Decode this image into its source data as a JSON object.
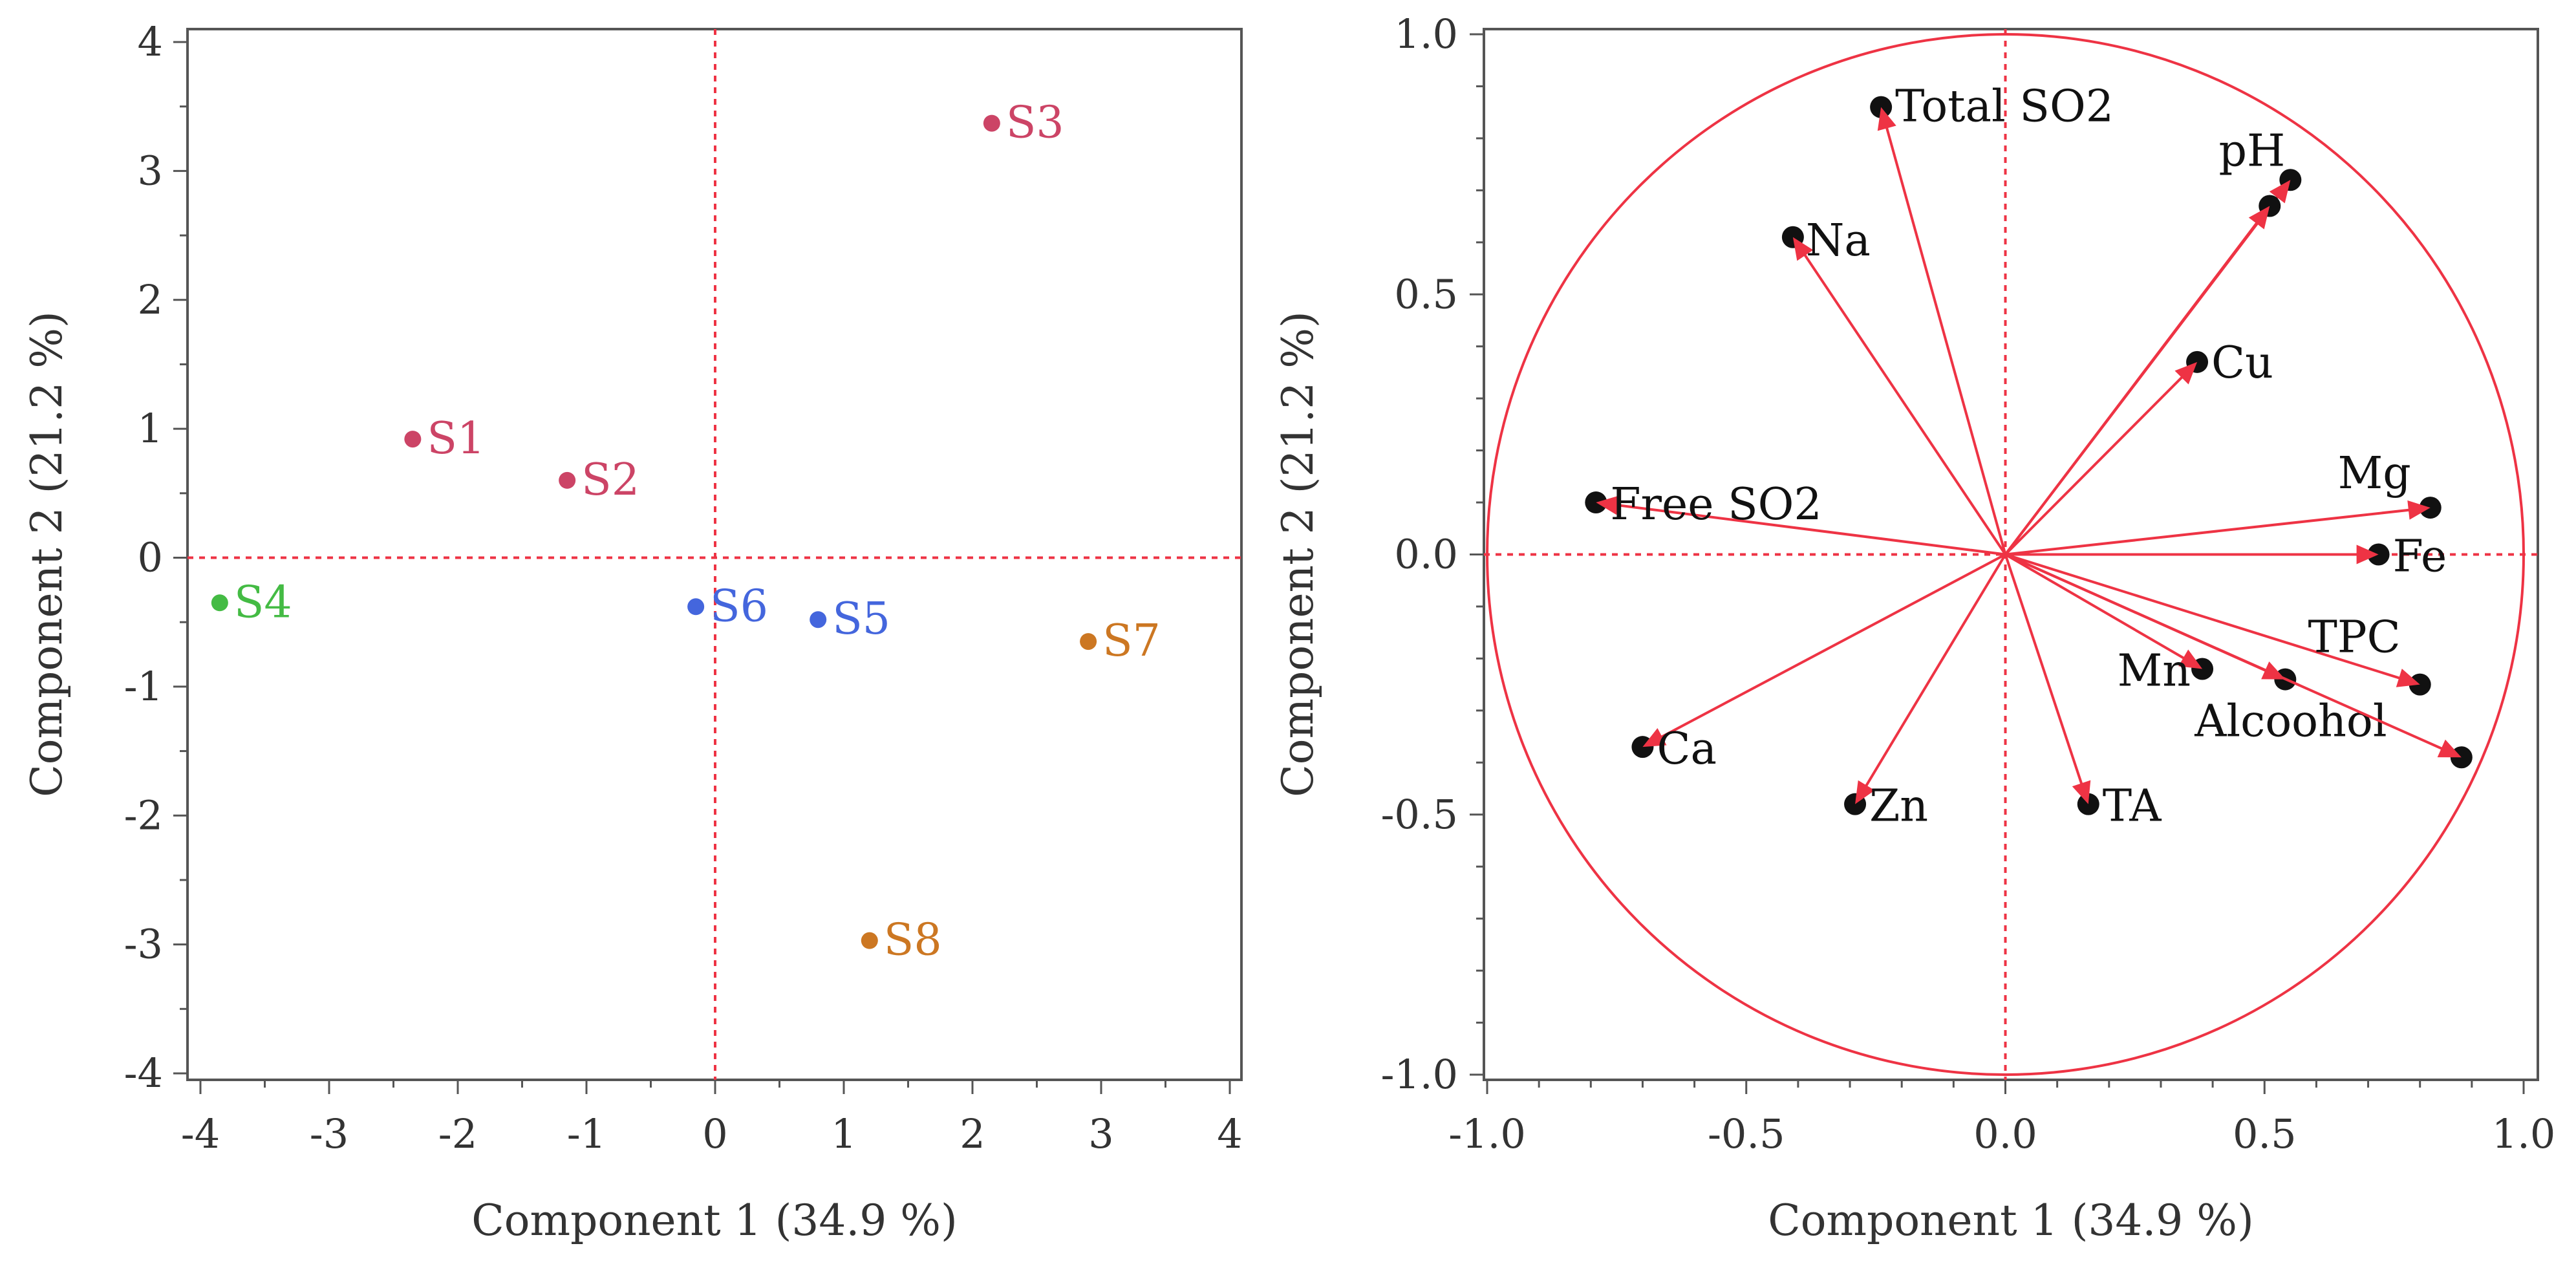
{
  "chart_data": [
    {
      "type": "scatter",
      "title": "",
      "xlabel": "Component 1  (34.9 %)",
      "ylabel": "Component 2  (21.2 %)",
      "xlim": [
        -4,
        4
      ],
      "ylim": [
        -4,
        4
      ],
      "xticks": [
        "-4",
        "-3",
        "-2",
        "-1",
        "0",
        "1",
        "2",
        "3",
        "4"
      ],
      "yticks": [
        "-4",
        "-3",
        "-2",
        "-1",
        "0",
        "1",
        "2",
        "3",
        "4"
      ],
      "points": [
        {
          "label": "S1",
          "x": -2.35,
          "y": 0.92,
          "color": "#cc4466"
        },
        {
          "label": "S2",
          "x": -1.15,
          "y": 0.6,
          "color": "#cc4466"
        },
        {
          "label": "S3",
          "x": 2.15,
          "y": 3.37,
          "color": "#cc4466"
        },
        {
          "label": "S4",
          "x": -3.85,
          "y": -0.35,
          "color": "#44bb44"
        },
        {
          "label": "S5",
          "x": 0.8,
          "y": -0.48,
          "color": "#4466dd"
        },
        {
          "label": "S6",
          "x": -0.15,
          "y": -0.38,
          "color": "#4466dd"
        },
        {
          "label": "S7",
          "x": 2.9,
          "y": -0.65,
          "color": "#cc7722"
        },
        {
          "label": "S8",
          "x": 1.2,
          "y": -2.97,
          "color": "#cc7722"
        }
      ]
    },
    {
      "type": "scatter",
      "title": "",
      "xlabel": "Component 1  (34.9 %)",
      "ylabel": "Component 2  (21.2 %)",
      "xlim": [
        -1.0,
        1.0
      ],
      "ylim": [
        -1.0,
        1.0
      ],
      "xticks": [
        "-1.0",
        "-0.5",
        "0.0",
        "0.5",
        "1.0"
      ],
      "yticks": [
        "-1.0",
        "-0.5",
        "0.0",
        "0.5",
        "1.0"
      ],
      "circle_radius": 1.0,
      "line_color": "#ee3344",
      "vectors": [
        {
          "label": "Total SO2",
          "x": -0.24,
          "y": 0.86
        },
        {
          "label": "pH",
          "x": 0.55,
          "y": 0.72
        },
        {
          "label": "",
          "x": 0.51,
          "y": 0.67
        },
        {
          "label": "Na",
          "x": -0.41,
          "y": 0.61
        },
        {
          "label": "Cu",
          "x": 0.37,
          "y": 0.37
        },
        {
          "label": "Mg",
          "x": 0.82,
          "y": 0.09
        },
        {
          "label": "Free SO2",
          "x": -0.79,
          "y": 0.1
        },
        {
          "label": "Fe",
          "x": 0.72,
          "y": 0.0
        },
        {
          "label": "TPC",
          "x": 0.8,
          "y": -0.25
        },
        {
          "label": "Mn",
          "x": 0.38,
          "y": -0.22
        },
        {
          "label": "Alcoohol",
          "x": 0.54,
          "y": -0.24
        },
        {
          "label": "",
          "x": 0.88,
          "y": -0.39
        },
        {
          "label": "Ca",
          "x": -0.7,
          "y": -0.37
        },
        {
          "label": "Zn",
          "x": -0.29,
          "y": -0.48
        },
        {
          "label": "TA",
          "x": 0.16,
          "y": -0.48
        }
      ]
    }
  ]
}
